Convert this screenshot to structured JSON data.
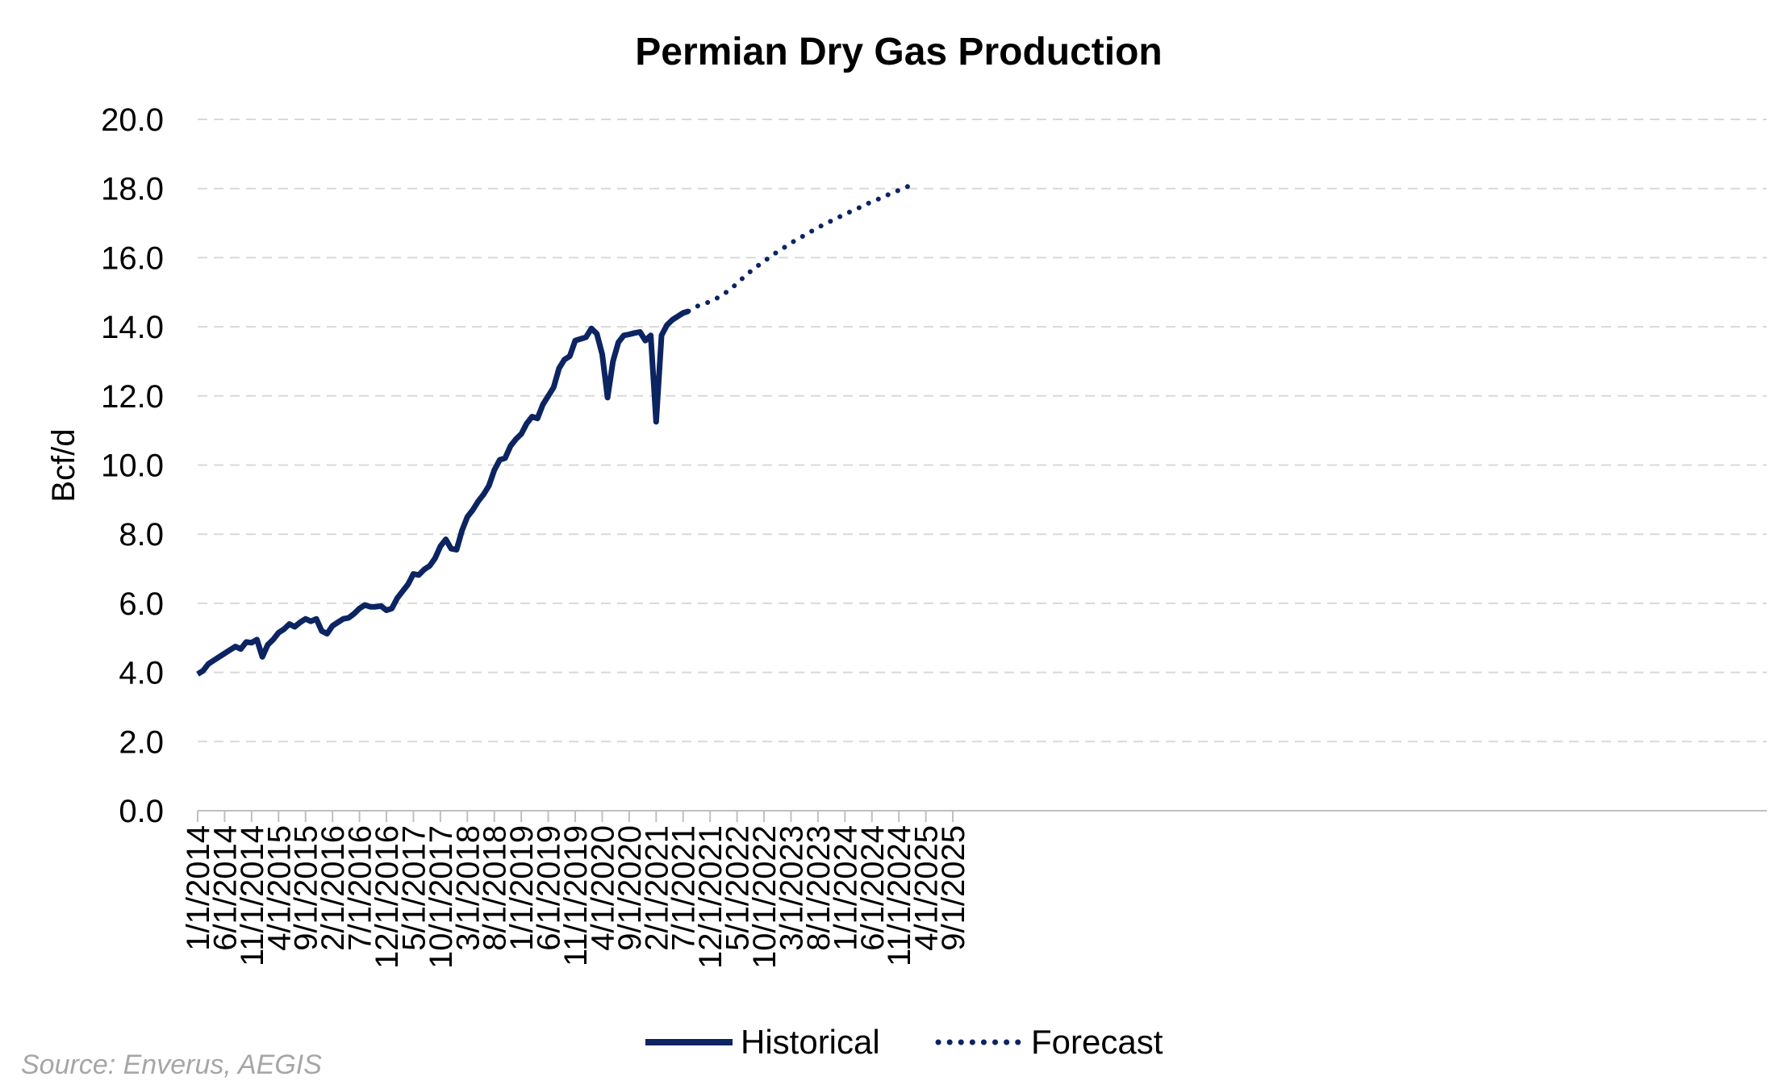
{
  "chart_data": {
    "type": "line",
    "title": "Permian Dry Gas Production",
    "ylabel": "Bcf/d",
    "xlabel": "",
    "ylim": [
      0,
      20
    ],
    "yticks": [
      "0.0",
      "2.0",
      "4.0",
      "6.0",
      "8.0",
      "10.0",
      "12.0",
      "14.0",
      "16.0",
      "18.0",
      "20.0"
    ],
    "xticks": [
      "1/1/2014",
      "6/1/2014",
      "11/1/2014",
      "4/1/2015",
      "9/1/2015",
      "2/1/2016",
      "7/1/2016",
      "12/1/2016",
      "5/1/2017",
      "10/1/2017",
      "3/1/2018",
      "8/1/2018",
      "1/1/2019",
      "6/1/2019",
      "11/1/2019",
      "4/1/2020",
      "9/1/2020",
      "2/1/2021",
      "7/1/2021",
      "12/1/2021",
      "5/1/2022",
      "10/1/2022",
      "3/1/2023",
      "8/1/2023",
      "1/1/2024",
      "6/1/2024",
      "11/1/2024",
      "4/1/2025",
      "9/1/2025"
    ],
    "x_start": "2014-01",
    "x_end": "2025-12",
    "grid": true,
    "legend_position": "bottom",
    "colors": {
      "line": "#0c2461",
      "grid": "#d9d9d9",
      "axis": "#bfbfbf"
    },
    "series": [
      {
        "name": "Historical",
        "style": "solid",
        "x_start": "2014-01",
        "values": [
          3.95,
          4.05,
          4.25,
          4.35,
          4.45,
          4.55,
          4.65,
          4.75,
          4.68,
          4.88,
          4.86,
          4.95,
          4.45,
          4.8,
          4.95,
          5.15,
          5.25,
          5.4,
          5.32,
          5.45,
          5.55,
          5.48,
          5.55,
          5.2,
          5.12,
          5.35,
          5.45,
          5.55,
          5.58,
          5.7,
          5.85,
          5.95,
          5.9,
          5.9,
          5.92,
          5.8,
          5.85,
          6.15,
          6.35,
          6.55,
          6.85,
          6.82,
          6.98,
          7.08,
          7.3,
          7.65,
          7.85,
          7.58,
          7.55,
          8.1,
          8.5,
          8.7,
          8.95,
          9.15,
          9.4,
          9.85,
          10.15,
          10.2,
          10.55,
          10.75,
          10.9,
          11.2,
          11.4,
          11.35,
          11.75,
          12.0,
          12.25,
          12.8,
          13.05,
          13.15,
          13.6,
          13.65,
          13.7,
          13.95,
          13.8,
          13.2,
          11.95,
          13.0,
          13.55,
          13.75,
          13.78,
          13.82,
          13.85,
          13.6,
          13.75,
          11.25,
          13.75,
          14.05,
          14.2,
          14.3,
          14.4,
          14.45
        ]
      },
      {
        "name": "Forecast",
        "style": "dotted",
        "x_start": "2021-08",
        "values": [
          14.45,
          14.55,
          14.62,
          14.68,
          14.72,
          14.8,
          14.9,
          15.0,
          15.12,
          15.25,
          15.4,
          15.55,
          15.65,
          15.78,
          15.9,
          16.0,
          16.12,
          16.22,
          16.32,
          16.42,
          16.52,
          16.6,
          16.7,
          16.78,
          16.87,
          16.95,
          17.03,
          17.1,
          17.18,
          17.25,
          17.33,
          17.4,
          17.47,
          17.55,
          17.62,
          17.68,
          17.75,
          17.82,
          17.88,
          17.95,
          18.02,
          18.08,
          18.15
        ]
      }
    ]
  },
  "source": "Source: Enverus, AEGIS"
}
